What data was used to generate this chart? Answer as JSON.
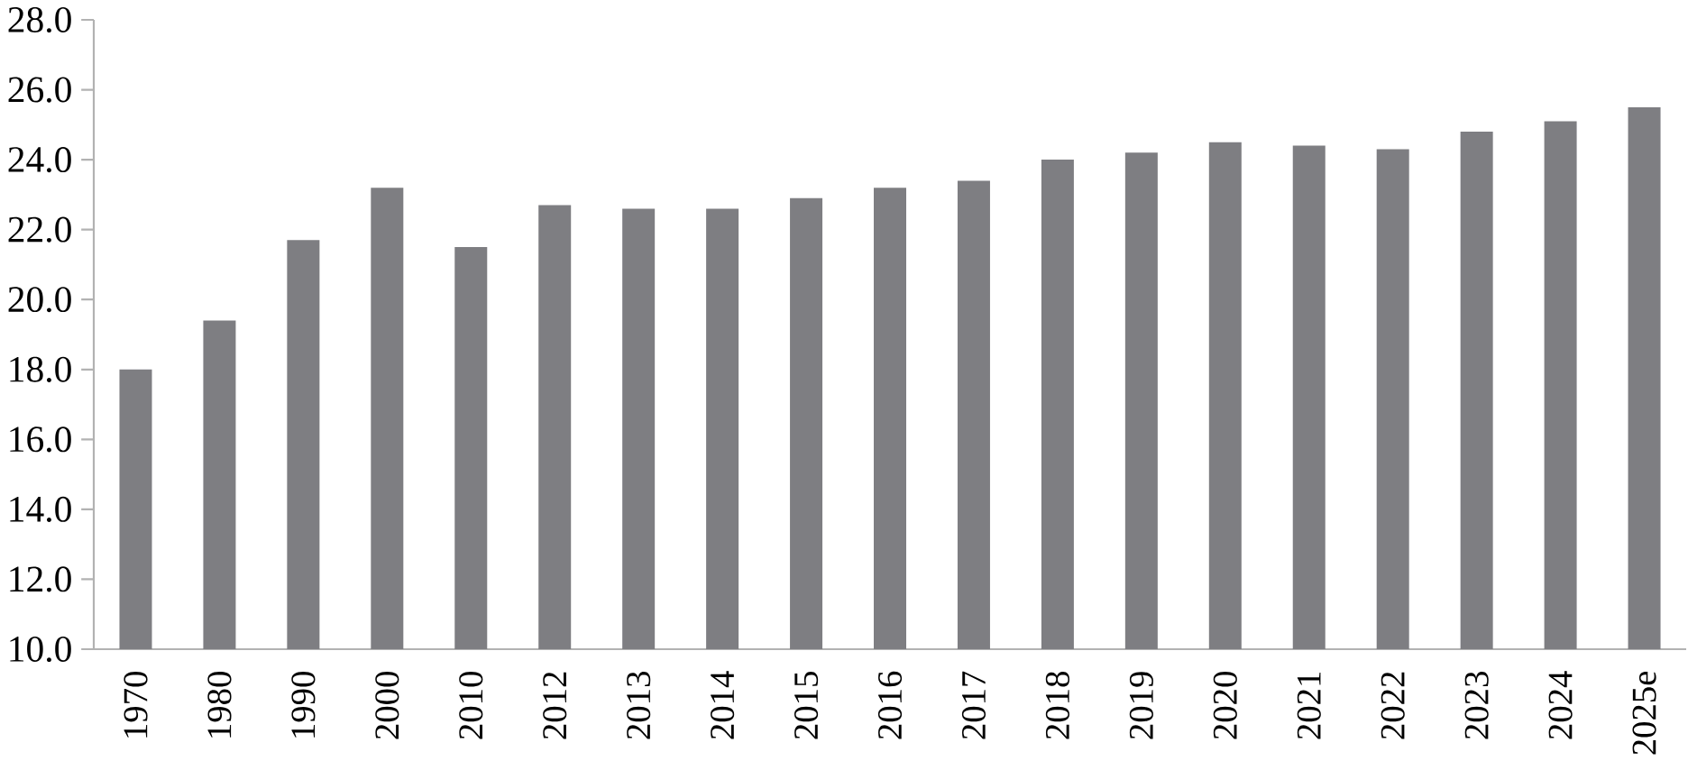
{
  "chart_data": {
    "type": "bar",
    "categories": [
      "1970",
      "1980",
      "1990",
      "2000",
      "2010",
      "2012",
      "2013",
      "2014",
      "2015",
      "2016",
      "2017",
      "2018",
      "2019",
      "2020",
      "2021",
      "2022",
      "2023",
      "2024",
      "2025e"
    ],
    "values": [
      18.0,
      19.4,
      21.7,
      23.2,
      21.5,
      22.7,
      22.6,
      22.6,
      22.9,
      23.2,
      23.4,
      24.0,
      24.2,
      24.5,
      24.4,
      24.3,
      24.8,
      25.1,
      25.5
    ],
    "color": "#7e7e82",
    "ylim": [
      10,
      28
    ],
    "yticks": [
      {
        "value": 10,
        "label": "10.0"
      },
      {
        "value": 12,
        "label": "12.0"
      },
      {
        "value": 14,
        "label": "14.0"
      },
      {
        "value": 16,
        "label": "16.0"
      },
      {
        "value": 18,
        "label": "18.0"
      },
      {
        "value": 20,
        "label": "20.0"
      },
      {
        "value": 22,
        "label": "22.0"
      },
      {
        "value": 24,
        "label": "24.0"
      },
      {
        "value": 26,
        "label": "26.0"
      },
      {
        "value": 28,
        "label": "28.0"
      }
    ],
    "grid": false
  }
}
